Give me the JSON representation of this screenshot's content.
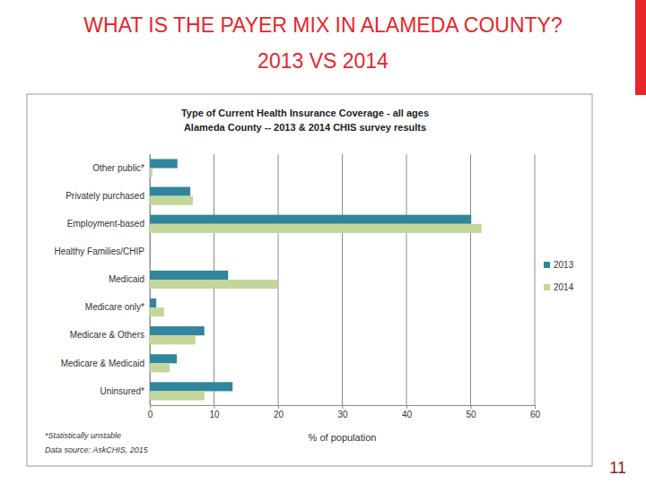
{
  "slide": {
    "title": [
      "WHAT IS THE PAYER MIX IN ALAMEDA COUNTY?",
      "2013 VS 2014"
    ],
    "page_number": "11"
  },
  "chart_data": {
    "type": "bar",
    "orientation": "horizontal",
    "title": "Type of Current Health Insurance Coverage - all ages",
    "subtitle": "Alameda County -- 2013 & 2014 CHIS survey results",
    "x_label": "% of population",
    "annotations": [
      "*Statistically unstable",
      "Data source: AskCHIS, 2015"
    ],
    "categories": [
      "Other public*",
      "Privately purchased",
      "Employment-based",
      "Healthy Families/CHIP",
      "Medicaid",
      "Medicare only*",
      "Medicare & Others",
      "Medicare & Medicaid",
      "Uninsured*"
    ],
    "series": [
      {
        "name": "2013",
        "color": "#31859c",
        "values": [
          4.3,
          6.3,
          50.1,
          0,
          12.2,
          1.0,
          8.5,
          4.2,
          12.9
        ]
      },
      {
        "name": "2014",
        "color": "#c3d69b",
        "values": [
          0.4,
          6.7,
          51.7,
          0,
          19.9,
          2.2,
          7.1,
          3.1,
          8.5
        ]
      }
    ],
    "xlim": [
      0,
      60
    ],
    "xticks": [
      0,
      10,
      20,
      30,
      40,
      50,
      60
    ],
    "grid": true,
    "legend": "right"
  }
}
